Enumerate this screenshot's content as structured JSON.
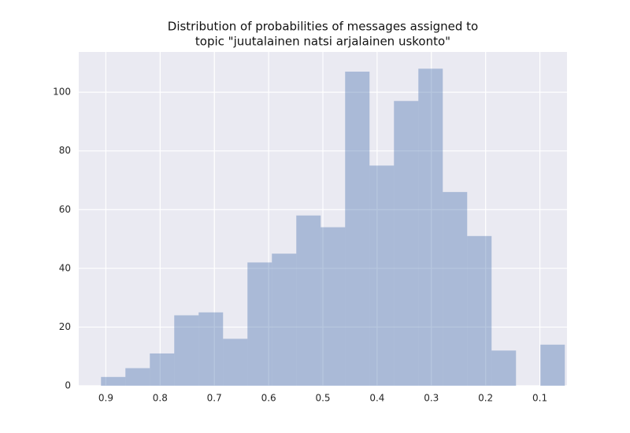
{
  "chart_data": {
    "type": "histogram",
    "title": [
      "Distribution of probabilities of messages assigned to",
      "topic \"juutalainen natsi arjalainen uskonto\""
    ],
    "bins": [
      0.054,
      0.099,
      0.144,
      0.189,
      0.234,
      0.279,
      0.324,
      0.369,
      0.414,
      0.459,
      0.504,
      0.549,
      0.594,
      0.639,
      0.684,
      0.729,
      0.774,
      0.819,
      0.864,
      0.909
    ],
    "values": [
      14,
      0,
      12,
      51,
      66,
      108,
      97,
      75,
      107,
      54,
      58,
      45,
      42,
      16,
      25,
      24,
      11,
      6,
      3
    ],
    "color": "#4c72b0",
    "xlim": [
      0.95,
      0.05
    ],
    "xticks": [
      0.9,
      0.8,
      0.7,
      0.6,
      0.5,
      0.4,
      0.3,
      0.2,
      0.1
    ],
    "ylim": [
      0,
      113.7
    ],
    "yticks": [
      0,
      20,
      40,
      60,
      80,
      100
    ],
    "grid": true
  }
}
